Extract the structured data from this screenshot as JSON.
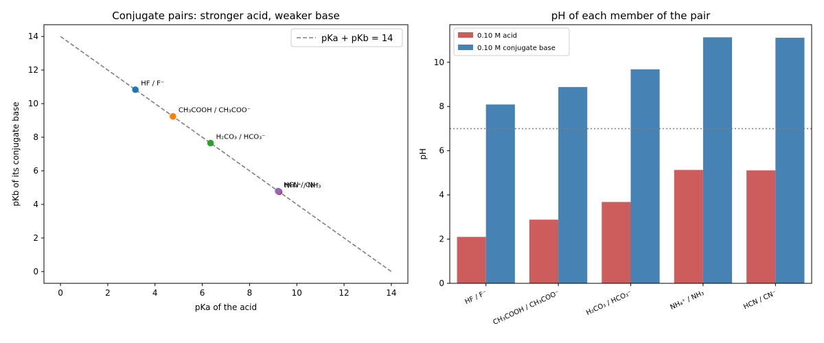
{
  "chart_data": [
    {
      "type": "scatter",
      "title": "Conjugate pairs: stronger acid, weaker base",
      "xlabel": "pKa of the acid",
      "ylabel": "pKb of its conjugate base",
      "xlim": [
        -0.7,
        14.7
      ],
      "ylim": [
        -0.7,
        14.7
      ],
      "xticks": [
        0,
        2,
        4,
        6,
        8,
        10,
        12,
        14
      ],
      "yticks": [
        0,
        2,
        4,
        6,
        8,
        10,
        12,
        14
      ],
      "grid": false,
      "legend": {
        "position": "top-right",
        "entries": [
          "pKa + pKb = 14"
        ]
      },
      "reference_line": {
        "name": "pKa + pKb = 14",
        "x": [
          0,
          14
        ],
        "y": [
          14,
          0
        ],
        "style": "dashed",
        "color": "#7f7f7f"
      },
      "points": [
        {
          "label": "HF / F⁻",
          "pKa": 3.17,
          "pKb": 10.83,
          "color": "#1f77b4"
        },
        {
          "label": "CH₃COOH / CH₃COO⁻",
          "pKa": 4.76,
          "pKb": 9.24,
          "color": "#ff7f0e"
        },
        {
          "label": "H₂CO₃ / HCO₃⁻",
          "pKa": 6.35,
          "pKb": 7.65,
          "color": "#2ca02c"
        },
        {
          "label": "NH₄⁺ / NH₃",
          "pKa": 9.25,
          "pKb": 4.75,
          "color": "#d62728"
        },
        {
          "label": "HCN / CN⁻",
          "pKa": 9.21,
          "pKb": 4.79,
          "color": "#9467bd"
        }
      ]
    },
    {
      "type": "bar",
      "title": "pH of each member of the pair",
      "xlabel": "",
      "ylabel": "pH",
      "ylim": [
        0,
        11.7
      ],
      "yticks": [
        0,
        2,
        4,
        6,
        8,
        10
      ],
      "grid": false,
      "reference_line": {
        "y": 7,
        "style": "dotted",
        "color": "#808080"
      },
      "legend": {
        "position": "top-left"
      },
      "categories": [
        "HF / F⁻",
        "CH₃COOH / CH₃COO⁻",
        "H₂CO₃ / HCO₃⁻",
        "NH₄⁺ / NH₃",
        "HCN / CN⁻"
      ],
      "series": [
        {
          "name": "0.10 M acid",
          "color": "#cd5c5c",
          "values": [
            2.1,
            2.88,
            3.68,
            5.13,
            5.11
          ]
        },
        {
          "name": "0.10 M conjugate base",
          "color": "#4682b4",
          "values": [
            8.09,
            8.88,
            9.68,
            11.13,
            11.11
          ]
        }
      ]
    }
  ]
}
